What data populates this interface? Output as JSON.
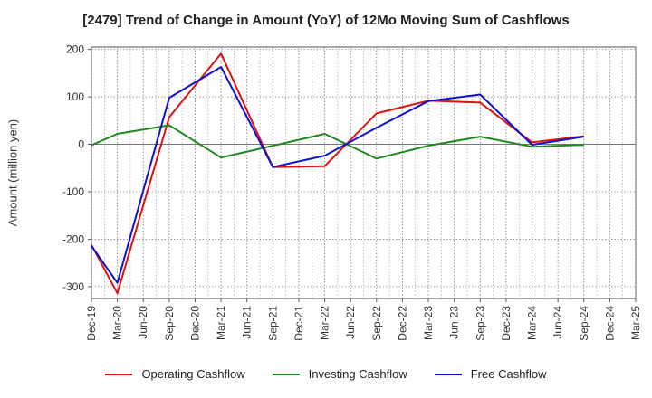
{
  "chart_data": {
    "type": "line",
    "title": "[2479]  Trend of Change in Amount (YoY) of 12Mo Moving Sum of Cashflows",
    "ylabel": "Amount (million yen)",
    "xlabel": "",
    "ylim": [
      -325,
      205
    ],
    "yticks": [
      200,
      100,
      0,
      -100,
      -200,
      -300
    ],
    "categories": [
      "Dec-19",
      "Mar-20",
      "Jun-20",
      "Sep-20",
      "Dec-20",
      "Mar-21",
      "Jun-21",
      "Sep-21",
      "Dec-21",
      "Mar-22",
      "Jun-22",
      "Sep-22",
      "Dec-22",
      "Mar-23",
      "Jun-23",
      "Sep-23",
      "Dec-23",
      "Mar-24",
      "Jun-24",
      "Sep-24",
      "Dec-24",
      "Mar-25"
    ],
    "series": [
      {
        "name": "Operating Cashflow",
        "color": "#dd1111",
        "values": [
          -212,
          -314,
          null,
          57,
          null,
          191,
          null,
          -48,
          null,
          -46,
          null,
          65,
          null,
          92,
          null,
          88,
          null,
          4,
          null,
          17,
          null,
          null
        ]
      },
      {
        "name": "Investing Cashflow",
        "color": "#228822",
        "values": [
          -2,
          22,
          null,
          40,
          null,
          -28,
          null,
          -3,
          null,
          22,
          null,
          -30,
          null,
          -3,
          null,
          16,
          null,
          -5,
          null,
          -1,
          null,
          null
        ]
      },
      {
        "name": "Free Cashflow",
        "color": "#1111cc",
        "values": [
          -214,
          -292,
          null,
          98,
          null,
          163,
          null,
          -48,
          null,
          -24,
          null,
          35,
          null,
          91,
          null,
          105,
          null,
          -1,
          null,
          16,
          null,
          null
        ]
      }
    ]
  }
}
